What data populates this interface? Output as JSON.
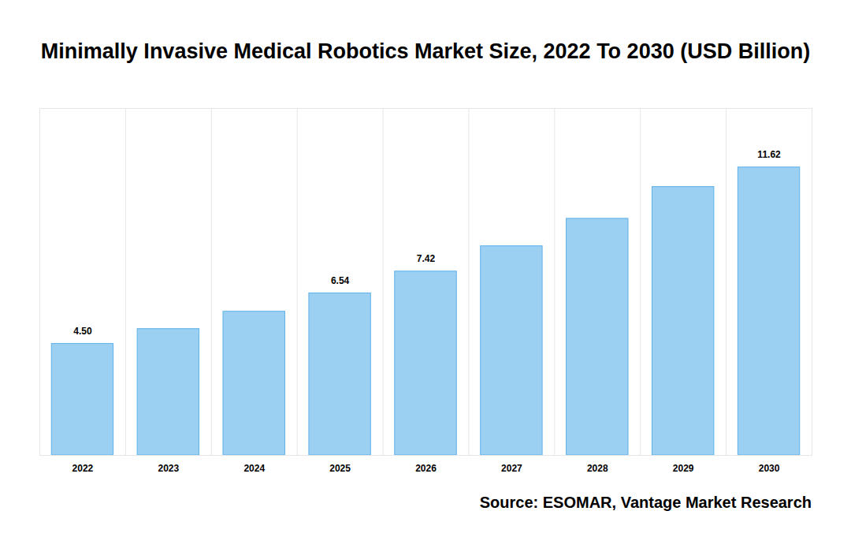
{
  "chart_data": {
    "type": "bar",
    "title": "Minimally Invasive Medical Robotics Market Size, 2022 To 2030 (USD Billion)",
    "source": "Source: ESOMAR, Vantage Market Research",
    "categories": [
      "2022",
      "2023",
      "2024",
      "2025",
      "2026",
      "2027",
      "2028",
      "2029",
      "2030"
    ],
    "values": [
      4.5,
      5.1,
      5.8,
      6.54,
      7.42,
      8.44,
      9.55,
      10.83,
      11.62
    ],
    "value_labels": [
      "4.50",
      null,
      null,
      "6.54",
      "7.42",
      null,
      null,
      null,
      "11.62"
    ],
    "color": "#9bd0f3",
    "ylim": [
      0,
      14
    ],
    "grid": true,
    "data_labels": true,
    "tick_labels": "x"
  }
}
